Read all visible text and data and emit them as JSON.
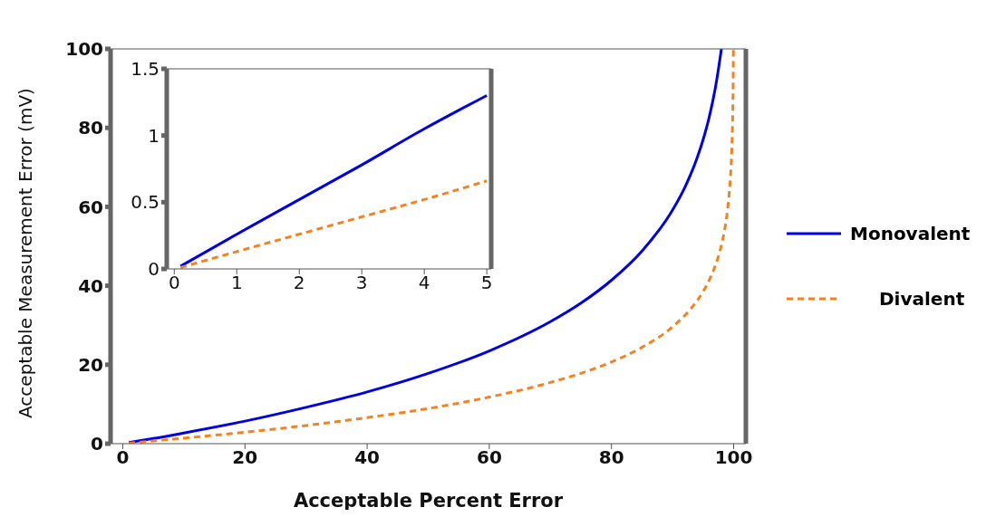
{
  "chart_data": [
    {
      "type": "line",
      "xlabel": "Acceptable Percent Error",
      "ylabel": "Acceptable Measurement Error (mV)",
      "xlim": [
        -2,
        102
      ],
      "ylim": [
        0,
        100
      ],
      "xticks": [
        0,
        20,
        40,
        60,
        80,
        100
      ],
      "yticks": [
        0,
        20,
        40,
        60,
        80,
        100
      ],
      "grid": false,
      "legend": "right",
      "marker": "none",
      "series": [
        {
          "name": "Monovalent",
          "color": "#0000e6",
          "line_style": "solid",
          "x": [
            1,
            5,
            10,
            20,
            30,
            40,
            50,
            60,
            70,
            75,
            80,
            85,
            90,
            92,
            94,
            95,
            96,
            97,
            97.5,
            98
          ],
          "values": [
            0.3,
            1.3,
            2.7,
            5.7,
            9.2,
            13.1,
            17.8,
            23.5,
            30.9,
            35.6,
            41.4,
            48.8,
            59.2,
            64.9,
            72.3,
            77,
            82.7,
            90.1,
            94.8,
            100
          ]
        },
        {
          "name": "Divalent",
          "color": "#f5821f",
          "line_style": "dashed",
          "x": [
            1,
            5,
            10,
            20,
            30,
            40,
            50,
            60,
            70,
            80,
            85,
            90,
            93,
            95,
            96,
            97,
            98,
            98.5,
            99,
            99.3,
            99.5,
            99.7,
            99.8,
            99.9,
            99.96
          ],
          "values": [
            0.1,
            0.7,
            1.4,
            2.9,
            4.6,
            6.6,
            8.9,
            11.8,
            15.5,
            20.7,
            24.4,
            29.6,
            34.2,
            38.5,
            41.4,
            45.1,
            50.3,
            54,
            59.2,
            63.8,
            68.1,
            74.6,
            79.9,
            88.8,
            100
          ]
        }
      ]
    },
    {
      "type": "line",
      "xlim": [
        -0.12,
        5.07
      ],
      "ylim": [
        0,
        1.5
      ],
      "xticks": [
        0,
        1,
        2,
        3,
        4,
        5
      ],
      "yticks": [
        0,
        0.5,
        1,
        1.5
      ],
      "grid": false,
      "marker": "none",
      "series": [
        {
          "color": "#0000e6",
          "line_style": "solid",
          "x": [
            0.1,
            1,
            2,
            3,
            4,
            5
          ],
          "values": [
            0.02,
            0.26,
            0.52,
            0.78,
            1.05,
            1.3
          ]
        },
        {
          "color": "#f5821f",
          "line_style": "dashed",
          "x": [
            0.1,
            1,
            2,
            3,
            4,
            5
          ],
          "values": [
            0.01,
            0.13,
            0.26,
            0.39,
            0.52,
            0.66
          ]
        }
      ]
    }
  ]
}
